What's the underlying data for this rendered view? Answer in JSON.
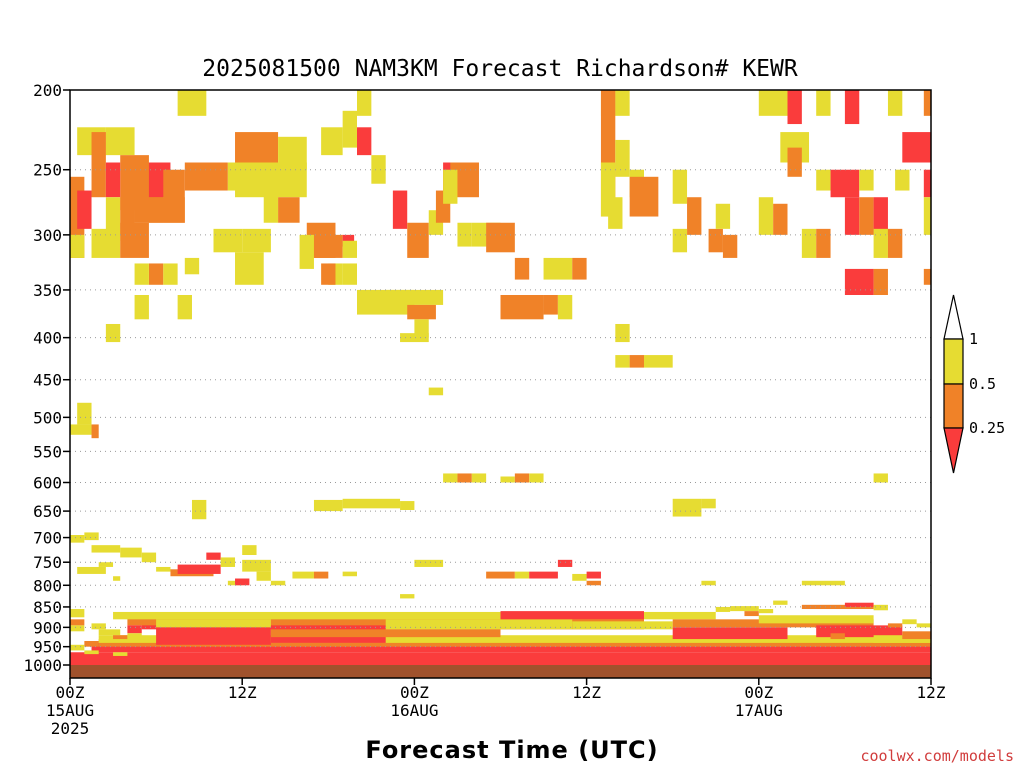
{
  "chart_data": {
    "type": "heatmap",
    "title": "2025081500 NAM3KM Forecast Richardson# KEWR",
    "xlabel": "Forecast Time (UTC)",
    "ylabel": "",
    "x_axis": {
      "units": "hours since 2025-08-15 00Z",
      "range": [
        0,
        60
      ],
      "ticks": [
        {
          "x": 0,
          "label_lines": [
            "00Z",
            "15AUG",
            "2025"
          ]
        },
        {
          "x": 12,
          "label_lines": [
            "12Z"
          ]
        },
        {
          "x": 24,
          "label_lines": [
            "00Z",
            "16AUG"
          ]
        },
        {
          "x": 36,
          "label_lines": [
            "12Z"
          ]
        },
        {
          "x": 48,
          "label_lines": [
            "00Z",
            "17AUG"
          ]
        },
        {
          "x": 60,
          "label_lines": [
            "12Z"
          ]
        }
      ]
    },
    "y_axis": {
      "units": "hPa",
      "scale": "log",
      "range": [
        1000,
        200
      ],
      "ticks": [
        200,
        250,
        300,
        350,
        400,
        450,
        500,
        550,
        600,
        650,
        700,
        750,
        800,
        850,
        900,
        950,
        1000
      ],
      "grid": "dotted"
    },
    "legend": {
      "placement": "right",
      "levels": [
        {
          "label": "1",
          "value": 1,
          "color": "#ffffff",
          "range": "> 1"
        },
        {
          "label": "0.5",
          "value": 0.5,
          "color": "#e6dc32",
          "range": "0.5 - 1"
        },
        {
          "label": "0.25",
          "value": 0.25,
          "color": "#f08228",
          "range": "0.25 - 0.5"
        },
        {
          "label": "",
          "value": 0,
          "color": "#fa3c3c",
          "range": "< 0.25"
        }
      ]
    },
    "ground_color": "#a0522d",
    "watermark": "coolwx.com/models",
    "cells": [
      [
        "y",
        7.5,
        9.5,
        200,
        215
      ],
      [
        "y",
        20,
        21,
        200,
        215
      ],
      [
        "y",
        37,
        38,
        200,
        215
      ],
      [
        "y",
        38,
        39,
        200,
        215
      ],
      [
        "y",
        48,
        50,
        200,
        215
      ],
      [
        "r",
        50,
        51,
        200,
        220
      ],
      [
        "y",
        52,
        53,
        200,
        215
      ],
      [
        "r",
        54,
        55,
        200,
        220
      ],
      [
        "y",
        57,
        58,
        200,
        215
      ],
      [
        "o",
        59.5,
        60,
        200,
        215
      ],
      [
        "y",
        0.5,
        2.5,
        222,
        240
      ],
      [
        "y",
        2.5,
        4.5,
        222,
        240
      ],
      [
        "o",
        1.5,
        2.5,
        225,
        270
      ],
      [
        "o",
        0,
        1,
        255,
        320
      ],
      [
        "r",
        0.5,
        1.5,
        265,
        295
      ],
      [
        "o",
        3.5,
        5.5,
        240,
        280
      ],
      [
        "r",
        2.5,
        3.5,
        245,
        270
      ],
      [
        "y",
        2.5,
        3.5,
        270,
        305
      ],
      [
        "o",
        3.5,
        4.5,
        270,
        300
      ],
      [
        "y",
        0,
        1,
        300,
        320
      ],
      [
        "y",
        1.5,
        3.5,
        295,
        320
      ],
      [
        "o",
        3.5,
        5.5,
        290,
        320
      ],
      [
        "o",
        4.5,
        6.5,
        245,
        290
      ],
      [
        "r",
        5.5,
        7,
        245,
        270
      ],
      [
        "o",
        6.5,
        8,
        250,
        290
      ],
      [
        "o",
        4.5,
        8,
        270,
        290
      ],
      [
        "o",
        8,
        11,
        245,
        265
      ],
      [
        "y",
        11,
        12,
        245,
        265
      ],
      [
        "o",
        11.5,
        14.5,
        225,
        245
      ],
      [
        "y",
        14.5,
        16.5,
        228,
        250
      ],
      [
        "y",
        11.5,
        16.5,
        245,
        270
      ],
      [
        "o",
        14.5,
        16,
        270,
        290
      ],
      [
        "y",
        13.5,
        14.5,
        265,
        290
      ],
      [
        "y",
        12,
        14,
        295,
        315
      ],
      [
        "y",
        10,
        12,
        295,
        315
      ],
      [
        "o",
        5.5,
        6.5,
        325,
        345
      ],
      [
        "y",
        6.5,
        7.5,
        325,
        345
      ],
      [
        "y",
        8,
        9,
        320,
        335
      ],
      [
        "y",
        4.5,
        5.5,
        325,
        345
      ],
      [
        "y",
        11.5,
        13.5,
        315,
        345
      ],
      [
        "y",
        4.5,
        5.5,
        355,
        380
      ],
      [
        "y",
        7.5,
        8.5,
        355,
        380
      ],
      [
        "y",
        2.5,
        3.5,
        385,
        405
      ],
      [
        "y",
        17.5,
        19,
        222,
        240
      ],
      [
        "y",
        19,
        20,
        212,
        235
      ],
      [
        "r",
        20,
        21,
        222,
        240
      ],
      [
        "y",
        21,
        22,
        240,
        260
      ],
      [
        "o",
        16.5,
        18.5,
        290,
        320
      ],
      [
        "o",
        17,
        19,
        300,
        320
      ],
      [
        "r",
        19,
        19.8,
        300,
        310
      ],
      [
        "y",
        19,
        20,
        305,
        320
      ],
      [
        "y",
        16,
        17,
        300,
        330
      ],
      [
        "y",
        18,
        19,
        325,
        345
      ],
      [
        "y",
        19,
        20,
        325,
        345
      ],
      [
        "o",
        17.5,
        18.5,
        325,
        345
      ],
      [
        "r",
        22.5,
        23.5,
        265,
        295
      ],
      [
        "y",
        20,
        24,
        350,
        375
      ],
      [
        "y",
        22,
        26,
        350,
        365
      ],
      [
        "o",
        23.5,
        25.5,
        365,
        380
      ],
      [
        "y",
        24,
        25,
        380,
        400
      ],
      [
        "y",
        23,
        25,
        395,
        405
      ],
      [
        "o",
        23.5,
        25,
        290,
        320
      ],
      [
        "y",
        25,
        26,
        280,
        300
      ],
      [
        "o",
        25.5,
        26.5,
        265,
        290
      ],
      [
        "r",
        26,
        27,
        245,
        265
      ],
      [
        "o",
        26.5,
        28.5,
        245,
        270
      ],
      [
        "y",
        26,
        27,
        250,
        275
      ],
      [
        "y",
        27,
        28,
        290,
        310
      ],
      [
        "y",
        28,
        30,
        290,
        310
      ],
      [
        "o",
        29,
        31,
        290,
        315
      ],
      [
        "o",
        31,
        32,
        320,
        340
      ],
      [
        "y",
        33,
        35,
        320,
        340
      ],
      [
        "o",
        35,
        36,
        320,
        340
      ],
      [
        "o",
        30,
        33,
        355,
        380
      ],
      [
        "o",
        33,
        34,
        355,
        375
      ],
      [
        "y",
        34,
        35,
        355,
        380
      ],
      [
        "o",
        37,
        38,
        200,
        285
      ],
      [
        "y",
        37,
        38,
        245,
        285
      ],
      [
        "y",
        38,
        39,
        230,
        255
      ],
      [
        "y",
        39,
        40,
        250,
        270
      ],
      [
        "o",
        39,
        41,
        255,
        285
      ],
      [
        "y",
        37.5,
        38.5,
        270,
        295
      ],
      [
        "y",
        42,
        43,
        250,
        275
      ],
      [
        "o",
        43,
        44,
        270,
        300
      ],
      [
        "y",
        42,
        43,
        295,
        315
      ],
      [
        "o",
        44.5,
        45.5,
        295,
        315
      ],
      [
        "y",
        45,
        46,
        275,
        295
      ],
      [
        "o",
        45.5,
        46.5,
        300,
        320
      ],
      [
        "y",
        38,
        39,
        385,
        405
      ],
      [
        "y",
        38,
        39,
        420,
        435
      ],
      [
        "o",
        39,
        40,
        420,
        435
      ],
      [
        "y",
        40,
        42,
        420,
        435
      ],
      [
        "y",
        48,
        49,
        270,
        300
      ],
      [
        "o",
        49,
        50,
        275,
        300
      ],
      [
        "y",
        49.5,
        51.5,
        225,
        245
      ],
      [
        "o",
        50,
        51,
        235,
        255
      ],
      [
        "y",
        52,
        53,
        250,
        265
      ],
      [
        "r",
        53,
        55,
        250,
        270
      ],
      [
        "y",
        55,
        56,
        250,
        265
      ],
      [
        "r",
        54,
        55,
        270,
        300
      ],
      [
        "o",
        55,
        56,
        270,
        300
      ],
      [
        "r",
        56,
        57,
        270,
        300
      ],
      [
        "y",
        51,
        52,
        295,
        320
      ],
      [
        "o",
        52,
        53,
        295,
        320
      ],
      [
        "y",
        56,
        57,
        295,
        320
      ],
      [
        "o",
        57,
        58,
        295,
        320
      ],
      [
        "r",
        54,
        56,
        330,
        355
      ],
      [
        "o",
        56,
        57,
        330,
        355
      ],
      [
        "y",
        57.5,
        58.5,
        250,
        265
      ],
      [
        "r",
        58,
        60,
        225,
        245
      ],
      [
        "r",
        59.5,
        60,
        250,
        270
      ],
      [
        "y",
        59.5,
        60,
        270,
        300
      ],
      [
        "o",
        59.5,
        60,
        330,
        345
      ],
      [
        "y",
        0.5,
        1.5,
        480,
        510
      ],
      [
        "y",
        0,
        1.5,
        510,
        525
      ],
      [
        "o",
        1.5,
        2,
        510,
        530
      ],
      [
        "y",
        25,
        26,
        460,
        470
      ],
      [
        "y",
        26,
        27,
        585,
        600
      ],
      [
        "o",
        27,
        28,
        585,
        600
      ],
      [
        "y",
        28,
        29,
        585,
        600
      ],
      [
        "y",
        30,
        31,
        590,
        600
      ],
      [
        "o",
        31,
        32,
        585,
        600
      ],
      [
        "y",
        32,
        33,
        585,
        600
      ],
      [
        "y",
        56,
        57,
        585,
        600
      ],
      [
        "y",
        8.5,
        9.5,
        630,
        665
      ],
      [
        "y",
        17,
        19,
        630,
        650
      ],
      [
        "y",
        19,
        23,
        628,
        645
      ],
      [
        "y",
        23,
        24,
        632,
        648
      ],
      [
        "y",
        42,
        44,
        628,
        660
      ],
      [
        "y",
        44,
        45,
        628,
        645
      ],
      [
        "y",
        0,
        1,
        695,
        710
      ],
      [
        "y",
        1,
        2,
        690,
        705
      ],
      [
        "y",
        1.5,
        3.5,
        715,
        730
      ],
      [
        "y",
        2,
        3,
        750,
        760
      ],
      [
        "y",
        0.5,
        2.5,
        760,
        775
      ],
      [
        "y",
        3,
        3.5,
        780,
        790
      ],
      [
        "y",
        3.5,
        5,
        720,
        740
      ],
      [
        "y",
        5,
        6,
        730,
        750
      ],
      [
        "y",
        6,
        7,
        760,
        770
      ],
      [
        "o",
        7,
        10,
        765,
        780
      ],
      [
        "r",
        7.5,
        10.5,
        755,
        775
      ],
      [
        "r",
        9.5,
        10.5,
        730,
        745
      ],
      [
        "y",
        10.5,
        11.5,
        740,
        760
      ],
      [
        "y",
        11,
        12,
        790,
        800
      ],
      [
        "r",
        11.5,
        12.5,
        785,
        800
      ],
      [
        "y",
        12,
        13,
        715,
        735
      ],
      [
        "y",
        12,
        14,
        745,
        770
      ],
      [
        "y",
        13,
        14,
        770,
        790
      ],
      [
        "y",
        14,
        15,
        790,
        800
      ],
      [
        "y",
        15.5,
        17,
        770,
        785
      ],
      [
        "o",
        17,
        18,
        770,
        785
      ],
      [
        "y",
        19,
        20,
        770,
        780
      ],
      [
        "y",
        24,
        26,
        745,
        760
      ],
      [
        "y",
        23,
        24,
        820,
        830
      ],
      [
        "o",
        29,
        31,
        770,
        785
      ],
      [
        "y",
        31,
        32,
        770,
        785
      ],
      [
        "r",
        32,
        34,
        770,
        785
      ],
      [
        "r",
        34,
        35,
        745,
        760
      ],
      [
        "y",
        35,
        36,
        775,
        790
      ],
      [
        "o",
        36,
        37,
        790,
        800
      ],
      [
        "r",
        36,
        37,
        770,
        785
      ],
      [
        "y",
        44,
        45,
        790,
        800
      ],
      [
        "y",
        51,
        54,
        790,
        800
      ],
      [
        "y",
        49,
        50,
        835,
        845
      ],
      [
        "o",
        51,
        56,
        845,
        855
      ],
      [
        "r",
        54,
        56,
        840,
        850
      ],
      [
        "y",
        56,
        57,
        845,
        858
      ],
      [
        "r",
        0,
        60,
        965,
        1000
      ],
      [
        "r",
        1.5,
        60,
        940,
        965
      ],
      [
        "o",
        2,
        60,
        930,
        950
      ],
      [
        "y",
        2,
        60,
        920,
        940
      ],
      [
        "r",
        5,
        40,
        880,
        905
      ],
      [
        "o",
        4,
        40,
        870,
        895
      ],
      [
        "y",
        3,
        45,
        862,
        880
      ],
      [
        "r",
        6,
        14,
        900,
        945
      ],
      [
        "y",
        6,
        14,
        880,
        900
      ],
      [
        "r",
        14,
        22,
        900,
        940
      ],
      [
        "o",
        14,
        30,
        905,
        925
      ],
      [
        "y",
        22,
        35,
        880,
        905
      ],
      [
        "r",
        30,
        40,
        860,
        880
      ],
      [
        "y",
        35,
        42,
        885,
        905
      ],
      [
        "r",
        42,
        50,
        900,
        930
      ],
      [
        "o",
        42,
        56,
        880,
        900
      ],
      [
        "y",
        48,
        56,
        870,
        890
      ],
      [
        "r",
        52,
        58,
        895,
        925
      ],
      [
        "y",
        56,
        60,
        920,
        940
      ],
      [
        "o",
        58,
        60,
        910,
        930
      ],
      [
        "y",
        0,
        1,
        855,
        875
      ],
      [
        "o",
        0,
        1,
        880,
        895
      ],
      [
        "y",
        0,
        1,
        895,
        910
      ],
      [
        "y",
        1.5,
        2.5,
        890,
        905
      ],
      [
        "y",
        2,
        3.5,
        905,
        920
      ],
      [
        "o",
        3,
        4,
        920,
        930
      ],
      [
        "r",
        4,
        5,
        895,
        915
      ],
      [
        "y",
        4,
        5,
        915,
        930
      ],
      [
        "o",
        1,
        2,
        935,
        950
      ],
      [
        "y",
        0,
        1,
        945,
        960
      ],
      [
        "y",
        1,
        2,
        960,
        970
      ],
      [
        "y",
        3,
        4,
        965,
        975
      ],
      [
        "y",
        45,
        46,
        850,
        862
      ],
      [
        "y",
        46,
        48,
        848,
        860
      ],
      [
        "o",
        47,
        48,
        860,
        872
      ],
      [
        "y",
        48,
        49,
        855,
        865
      ],
      [
        "y",
        58,
        59,
        880,
        892
      ],
      [
        "o",
        57,
        58,
        890,
        900
      ],
      [
        "y",
        59,
        60,
        890,
        900
      ],
      [
        "r",
        55,
        56,
        900,
        915
      ],
      [
        "o",
        53,
        54,
        915,
        930
      ]
    ]
  }
}
